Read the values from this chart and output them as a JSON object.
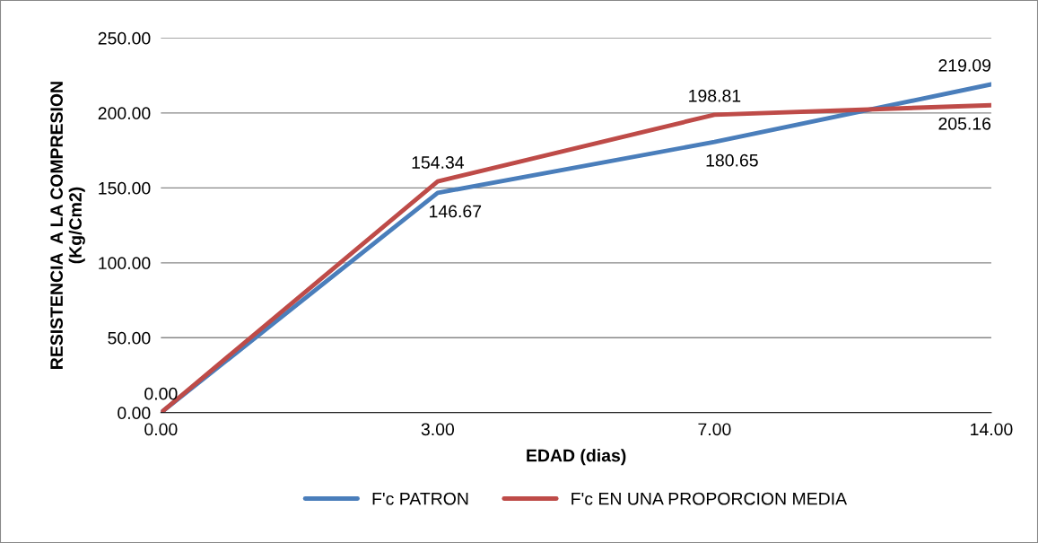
{
  "chart_data": {
    "type": "line",
    "xlabel": "EDAD (dias)",
    "ylabel": "RESISTENCIA  A LA COMPRESION\n(Kg/Cm2)",
    "categories": [
      "0.00",
      "3.00",
      "7.00",
      "14.00"
    ],
    "series": [
      {
        "name": "F'c PATRON",
        "color": "#4a7ebb",
        "values": [
          0,
          146.67,
          180.65,
          219.09
        ],
        "value_labels": [
          null,
          "146.67",
          "180.65",
          "219.09"
        ]
      },
      {
        "name": "F'c EN UNA PROPORCION MEDIA",
        "color": "#be4b48",
        "values": [
          0,
          154.34,
          198.81,
          205.16
        ],
        "value_labels": [
          "0.00",
          "154.34",
          "198.81",
          "205.16"
        ]
      }
    ],
    "ylim": [
      0,
      250
    ],
    "yticks": [
      {
        "value": 0,
        "label": "0.00"
      },
      {
        "value": 50,
        "label": "50.00"
      },
      {
        "value": 100,
        "label": "100.00"
      },
      {
        "value": 150,
        "label": "150.00"
      },
      {
        "value": 200,
        "label": "200.00"
      },
      {
        "value": 250,
        "label": "250.00"
      }
    ],
    "grid": "y",
    "legend": "bottom",
    "marker": "none",
    "line_style": "solid"
  }
}
